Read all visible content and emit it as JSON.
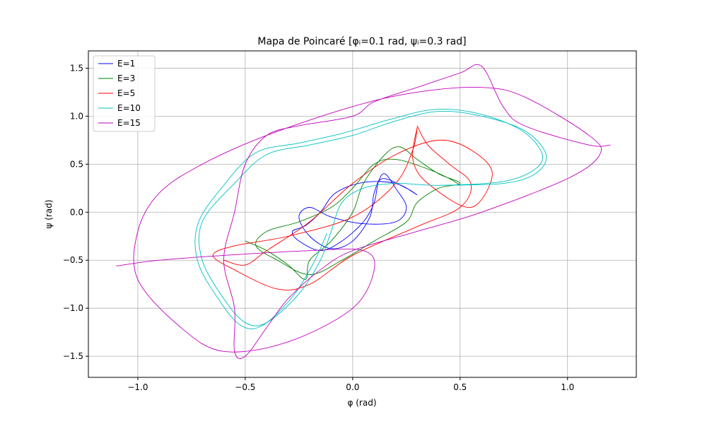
{
  "chart_data": {
    "type": "line",
    "title": "Mapa de Poincaré [φᵢ=0.1 rad, ψᵢ=0.3 rad]",
    "xlabel": "φ (rad)",
    "ylabel": "ψ (rad)",
    "xlim": [
      -1.23,
      1.32
    ],
    "ylim": [
      -1.72,
      1.68
    ],
    "xticks": [
      -1.0,
      -0.5,
      0.0,
      0.5,
      1.0
    ],
    "xtick_labels": [
      "−1.0",
      "−0.5",
      "0.0",
      "0.5",
      "1.0"
    ],
    "yticks": [
      -1.5,
      -1.0,
      -0.5,
      0.0,
      0.5,
      1.0,
      1.5
    ],
    "ytick_labels": [
      "−1.5",
      "−1.0",
      "−0.5",
      "0.0",
      "0.5",
      "1.0",
      "1.5"
    ],
    "grid": true,
    "legend_position": "top-left",
    "series": [
      {
        "name": "E=1",
        "color": "#0000ff",
        "points": [
          [
            0.3,
            0.18
          ],
          [
            0.2,
            0.3
          ],
          [
            0.05,
            0.31
          ],
          [
            -0.08,
            0.2
          ],
          [
            -0.15,
            0.0
          ],
          [
            -0.22,
            -0.14
          ],
          [
            -0.28,
            -0.2
          ],
          [
            -0.25,
            -0.3
          ],
          [
            -0.15,
            -0.4
          ],
          [
            -0.05,
            -0.3
          ],
          [
            0.05,
            -0.1
          ],
          [
            0.1,
            0.1
          ],
          [
            0.12,
            0.32
          ],
          [
            0.15,
            0.4
          ],
          [
            0.2,
            0.25
          ],
          [
            0.25,
            0.05
          ],
          [
            0.2,
            -0.1
          ],
          [
            0.05,
            -0.12
          ],
          [
            -0.1,
            -0.05
          ],
          [
            -0.2,
            0.05
          ],
          [
            -0.25,
            -0.05
          ],
          [
            -0.2,
            -0.25
          ],
          [
            -0.1,
            -0.38
          ],
          [
            0.0,
            -0.3
          ],
          [
            0.08,
            -0.05
          ],
          [
            0.1,
            0.2
          ],
          [
            0.14,
            0.35
          ],
          [
            0.25,
            0.25
          ],
          [
            0.3,
            0.18
          ]
        ]
      },
      {
        "name": "E=3",
        "color": "#008000",
        "points": [
          [
            -0.5,
            -0.3
          ],
          [
            -0.4,
            -0.4
          ],
          [
            -0.3,
            -0.55
          ],
          [
            -0.22,
            -0.7
          ],
          [
            -0.2,
            -0.5
          ],
          [
            -0.1,
            -0.3
          ],
          [
            0.0,
            0.0
          ],
          [
            0.05,
            0.3
          ],
          [
            0.15,
            0.6
          ],
          [
            0.22,
            0.68
          ],
          [
            0.3,
            0.55
          ],
          [
            0.4,
            0.4
          ],
          [
            0.5,
            0.3
          ],
          [
            0.4,
            0.25
          ],
          [
            0.3,
            0.1
          ],
          [
            0.25,
            -0.1
          ],
          [
            0.1,
            -0.3
          ],
          [
            -0.05,
            -0.5
          ],
          [
            -0.2,
            -0.65
          ],
          [
            -0.35,
            -0.5
          ],
          [
            -0.45,
            -0.35
          ],
          [
            -0.4,
            -0.2
          ],
          [
            -0.25,
            -0.1
          ],
          [
            -0.1,
            0.05
          ],
          [
            0.0,
            0.25
          ],
          [
            0.1,
            0.5
          ],
          [
            0.2,
            0.55
          ],
          [
            0.35,
            0.45
          ],
          [
            0.45,
            0.35
          ],
          [
            0.5,
            0.28
          ]
        ]
      },
      {
        "name": "E=5",
        "color": "#ff0000",
        "points": [
          [
            0.3,
            0.9
          ],
          [
            0.35,
            0.7
          ],
          [
            0.45,
            0.5
          ],
          [
            0.55,
            0.3
          ],
          [
            0.5,
            0.05
          ],
          [
            0.3,
            -0.15
          ],
          [
            0.0,
            -0.45
          ],
          [
            -0.2,
            -0.75
          ],
          [
            -0.35,
            -0.8
          ],
          [
            -0.55,
            -0.6
          ],
          [
            -0.65,
            -0.45
          ],
          [
            -0.55,
            -0.35
          ],
          [
            -0.3,
            -0.25
          ],
          [
            0.0,
            -0.05
          ],
          [
            0.2,
            0.3
          ],
          [
            0.28,
            0.65
          ],
          [
            0.3,
            0.88
          ],
          [
            0.28,
            0.55
          ],
          [
            0.35,
            0.3
          ],
          [
            0.55,
            0.05
          ],
          [
            0.65,
            0.4
          ],
          [
            0.55,
            0.65
          ],
          [
            0.4,
            0.75
          ],
          [
            0.2,
            0.6
          ],
          [
            0.0,
            0.3
          ],
          [
            -0.2,
            -0.1
          ],
          [
            -0.4,
            -0.4
          ],
          [
            -0.5,
            -0.55
          ],
          [
            -0.6,
            -0.5
          ]
        ]
      },
      {
        "name": "E=10",
        "color": "#00bfbf",
        "points": [
          [
            0.4,
            0.28
          ],
          [
            0.7,
            0.3
          ],
          [
            0.85,
            0.4
          ],
          [
            0.9,
            0.6
          ],
          [
            0.8,
            0.85
          ],
          [
            0.6,
            1.0
          ],
          [
            0.4,
            1.05
          ],
          [
            0.2,
            0.95
          ],
          [
            0.0,
            0.8
          ],
          [
            -0.2,
            0.7
          ],
          [
            -0.4,
            0.6
          ],
          [
            -0.55,
            0.3
          ],
          [
            -0.7,
            -0.1
          ],
          [
            -0.7,
            -0.5
          ],
          [
            -0.6,
            -0.9
          ],
          [
            -0.5,
            -1.15
          ],
          [
            -0.4,
            -1.15
          ],
          [
            -0.25,
            -0.85
          ],
          [
            -0.15,
            -0.5
          ],
          [
            -0.1,
            -0.2
          ],
          [
            -0.05,
            0.1
          ],
          [
            0.05,
            0.25
          ],
          [
            0.2,
            0.3
          ],
          [
            0.4,
            0.28
          ],
          [
            0.7,
            0.32
          ],
          [
            0.85,
            0.45
          ],
          [
            0.88,
            0.62
          ],
          [
            0.78,
            0.86
          ],
          [
            0.58,
            1.03
          ],
          [
            0.38,
            1.07
          ],
          [
            0.18,
            0.97
          ],
          [
            -0.05,
            0.82
          ],
          [
            -0.25,
            0.72
          ],
          [
            -0.45,
            0.62
          ],
          [
            -0.6,
            0.28
          ],
          [
            -0.72,
            -0.12
          ],
          [
            -0.72,
            -0.52
          ],
          [
            -0.62,
            -0.92
          ],
          [
            -0.52,
            -1.18
          ],
          [
            -0.42,
            -1.18
          ],
          [
            -0.28,
            -0.88
          ],
          [
            -0.18,
            -0.52
          ],
          [
            -0.12,
            -0.22
          ]
        ]
      },
      {
        "name": "E=15",
        "color": "#bf00bf",
        "points": [
          [
            1.2,
            0.7
          ],
          [
            1.1,
            0.7
          ],
          [
            0.8,
            0.9
          ],
          [
            0.7,
            1.1
          ],
          [
            0.6,
            1.52
          ],
          [
            0.5,
            1.45
          ],
          [
            0.3,
            1.3
          ],
          [
            0.1,
            1.15
          ],
          [
            0.0,
            1.0
          ],
          [
            -0.25,
            0.9
          ],
          [
            -0.4,
            0.8
          ],
          [
            -0.5,
            0.5
          ],
          [
            -0.55,
            0.0
          ],
          [
            -0.6,
            -0.5
          ],
          [
            -0.55,
            -1.0
          ],
          [
            -0.55,
            -1.45
          ],
          [
            -0.5,
            -1.5
          ],
          [
            -0.4,
            -1.2
          ],
          [
            -0.3,
            -0.9
          ],
          [
            -0.15,
            -0.6
          ],
          [
            0.0,
            -0.4
          ],
          [
            0.3,
            -0.2
          ],
          [
            0.6,
            0.0
          ],
          [
            1.0,
            0.35
          ],
          [
            1.15,
            0.6
          ],
          [
            1.1,
            0.8
          ],
          [
            0.8,
            1.2
          ],
          [
            0.6,
            1.3
          ],
          [
            0.3,
            1.25
          ],
          [
            0.0,
            1.1
          ],
          [
            -0.4,
            0.8
          ],
          [
            -0.7,
            0.5
          ],
          [
            -0.9,
            0.2
          ],
          [
            -1.0,
            -0.2
          ],
          [
            -1.0,
            -0.7
          ],
          [
            -0.8,
            -1.2
          ],
          [
            -0.6,
            -1.45
          ],
          [
            -0.3,
            -1.35
          ],
          [
            0.0,
            -1.0
          ],
          [
            0.1,
            -0.6
          ],
          [
            0.05,
            -0.4
          ],
          [
            -0.2,
            -0.4
          ],
          [
            -0.6,
            -0.45
          ],
          [
            -0.9,
            -0.5
          ],
          [
            -1.1,
            -0.56
          ]
        ]
      }
    ]
  }
}
